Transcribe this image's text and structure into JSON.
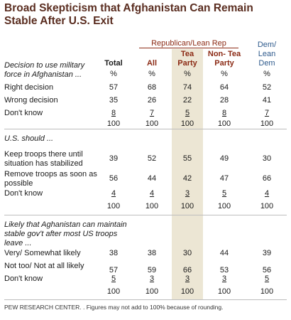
{
  "title": "Broad Skepticism that Afghanistan Can Remain Stable After U.S. Exit",
  "chart_data": {
    "type": "table",
    "title": "Broad Skepticism that Afghanistan Can Remain Stable After U.S. Exit",
    "group_header": "Republican/Lean Rep",
    "columns": [
      "Total",
      "All",
      "Tea Party",
      "Non- Tea Party",
      "Dem/ Lean Dem"
    ],
    "sections": [
      {
        "question": "Decision to use military force in Afghanistan ...",
        "rows": [
          {
            "label": "",
            "values": [
              "%",
              "%",
              "%",
              "%",
              "%"
            ]
          },
          {
            "label": "Right decision",
            "values": [
              "57",
              "68",
              "74",
              "64",
              "52"
            ]
          },
          {
            "label": "Wrong decision",
            "values": [
              "35",
              "26",
              "22",
              "28",
              "41"
            ]
          },
          {
            "label": "Don't know",
            "values": [
              "8",
              "7",
              "5",
              "8",
              "7"
            ]
          },
          {
            "label": "",
            "values": [
              "100",
              "100",
              "100",
              "100",
              "100"
            ]
          }
        ]
      },
      {
        "question": "U.S. should ...",
        "rows": [
          {
            "label": "Keep troops there until situation has stabilized",
            "values": [
              "39",
              "52",
              "55",
              "49",
              "30"
            ]
          },
          {
            "label": "Remove troops as soon as possible",
            "values": [
              "56",
              "44",
              "42",
              "47",
              "66"
            ]
          },
          {
            "label": "Don't know",
            "values": [
              "4",
              "4",
              "3",
              "5",
              "4"
            ]
          },
          {
            "label": "",
            "values": [
              "100",
              "100",
              "100",
              "100",
              "100"
            ]
          }
        ]
      },
      {
        "question": "Likely that Aghanistan can maintain stable gov't after most US troops leave ...",
        "rows": [
          {
            "label": "Very/ Somewhat likely",
            "values": [
              "38",
              "38",
              "30",
              "44",
              "39"
            ]
          },
          {
            "label": "Not too/ Not at all likely",
            "values": [
              "57",
              "59",
              "66",
              "53",
              "56"
            ]
          },
          {
            "label": "Don't know",
            "values": [
              "5",
              "3",
              "3",
              "3",
              "5"
            ]
          },
          {
            "label": "",
            "values": [
              "100",
              "100",
              "100",
              "100",
              "100"
            ]
          }
        ]
      }
    ]
  },
  "footer": "PEW RESEARCH CENTER. . Figures may not add to 100% because of rounding."
}
